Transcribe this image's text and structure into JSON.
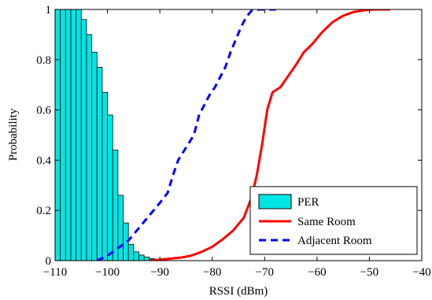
{
  "chart_data": {
    "type": "bar+line",
    "xlabel": "RSSI (dBm)",
    "ylabel": "Probability",
    "xlim": [
      -110,
      -40
    ],
    "ylim": [
      0,
      1
    ],
    "x_ticks": [
      -110,
      -100,
      -90,
      -80,
      -70,
      -60,
      -50,
      -40
    ],
    "x_tick_labels": [
      "−110",
      "−100",
      "−90",
      "−80",
      "−70",
      "−60",
      "−50",
      "−40"
    ],
    "y_ticks": [
      0,
      0.2,
      0.4,
      0.6,
      0.8,
      1
    ],
    "y_tick_labels": [
      "0",
      "0.2",
      "0.4",
      "0.6",
      "0.8",
      "1"
    ],
    "grid": false,
    "legend_position": "bottom-right",
    "bars": {
      "name": "PER",
      "color": "#00e5e5",
      "edge_color": "#000000",
      "bin_width": 1,
      "x": [
        -110,
        -109,
        -108,
        -107,
        -106,
        -105,
        -104,
        -103,
        -102,
        -101,
        -100,
        -99,
        -98,
        -97,
        -96,
        -95,
        -94,
        -93,
        -92,
        -91
      ],
      "values": [
        1.0,
        1.0,
        1.0,
        1.0,
        1.0,
        0.96,
        0.9,
        0.83,
        0.77,
        0.67,
        0.58,
        0.44,
        0.26,
        0.15,
        0.065,
        0.035,
        0.022,
        0.014,
        0.008,
        0.004
      ]
    },
    "series": [
      {
        "name": "Same Room",
        "color": "#ff0000",
        "style": "solid",
        "points": [
          [
            -92,
            0.0
          ],
          [
            -90,
            0.004
          ],
          [
            -88,
            0.008
          ],
          [
            -86,
            0.012
          ],
          [
            -84,
            0.02
          ],
          [
            -82,
            0.035
          ],
          [
            -80,
            0.055
          ],
          [
            -78,
            0.085
          ],
          [
            -76,
            0.12
          ],
          [
            -74,
            0.17
          ],
          [
            -72.5,
            0.25
          ],
          [
            -71.5,
            0.34
          ],
          [
            -70.5,
            0.46
          ],
          [
            -69.5,
            0.6
          ],
          [
            -68.5,
            0.67
          ],
          [
            -67,
            0.69
          ],
          [
            -66,
            0.72
          ],
          [
            -64,
            0.78
          ],
          [
            -62.5,
            0.83
          ],
          [
            -61,
            0.86
          ],
          [
            -59,
            0.91
          ],
          [
            -57,
            0.95
          ],
          [
            -55,
            0.975
          ],
          [
            -53,
            0.99
          ],
          [
            -51,
            0.997
          ],
          [
            -49,
            1.0
          ],
          [
            -46,
            1.0
          ]
        ]
      },
      {
        "name": "Adjacent Room",
        "color": "#0000ff",
        "style": "dashed",
        "points": [
          [
            -102,
            0.0
          ],
          [
            -100,
            0.02
          ],
          [
            -98,
            0.05
          ],
          [
            -96,
            0.08
          ],
          [
            -94,
            0.13
          ],
          [
            -92,
            0.18
          ],
          [
            -90,
            0.23
          ],
          [
            -88.5,
            0.27
          ],
          [
            -87.5,
            0.34
          ],
          [
            -86.5,
            0.4
          ],
          [
            -85,
            0.45
          ],
          [
            -83.5,
            0.5
          ],
          [
            -82.5,
            0.58
          ],
          [
            -81.5,
            0.62
          ],
          [
            -80.5,
            0.66
          ],
          [
            -79.5,
            0.69
          ],
          [
            -78.5,
            0.73
          ],
          [
            -77.5,
            0.77
          ],
          [
            -76.5,
            0.83
          ],
          [
            -75.5,
            0.88
          ],
          [
            -74.5,
            0.93
          ],
          [
            -73.5,
            0.97
          ],
          [
            -72.5,
            0.995
          ],
          [
            -71,
            1.0
          ],
          [
            -67,
            1.0
          ]
        ]
      }
    ],
    "legend": [
      {
        "label": "PER",
        "kind": "bar"
      },
      {
        "label": "Same Room",
        "kind": "line-solid"
      },
      {
        "label": "Adjacent Room",
        "kind": "line-dashed"
      }
    ]
  }
}
